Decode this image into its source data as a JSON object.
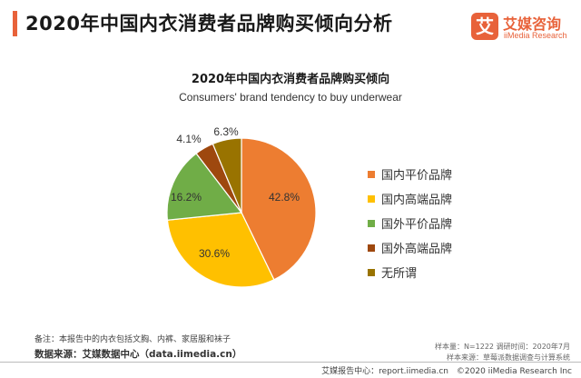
{
  "header": {
    "title": "2020年中国内衣消费者品牌购买倾向分析",
    "accent_color": "#e8623a"
  },
  "logo": {
    "mark": "艾",
    "cn": "艾媒咨询",
    "en": "iiMedia Research",
    "color": "#e8623a"
  },
  "chart_data": {
    "type": "pie",
    "title": "2020年中国内衣消费者品牌购买倾向",
    "subtitle": "Consumers' brand tendency to buy underwear",
    "unit": "%",
    "slices": [
      {
        "label": "国内平价品牌",
        "value": 42.8,
        "display": "42.8%",
        "color": "#ed7d31"
      },
      {
        "label": "国内高端品牌",
        "value": 30.6,
        "display": "30.6%",
        "color": "#ffc000"
      },
      {
        "label": "国外平价品牌",
        "value": 16.2,
        "display": "16.2%",
        "color": "#70ad47"
      },
      {
        "label": "国外高端品牌",
        "value": 4.1,
        "display": "4.1%",
        "color": "#9e480e"
      },
      {
        "label": "无所谓",
        "value": 6.3,
        "display": "6.3%",
        "color": "#997300"
      }
    ],
    "legend_position": "right"
  },
  "footnotes": {
    "note": "备注：本报告中的内衣包括文胸、内裤、家居服和袜子",
    "source": "数据来源：艾媒数据中心（data.iimedia.cn）",
    "sample": "样本量：N=1222   调研时间：2020年7月",
    "sample_source": "样本来源：草莓派数据调查与计算系统"
  },
  "footer": {
    "report": "艾媒报告中心：report.iimedia.cn",
    "copyright": "©2020  iiMedia Research  Inc"
  }
}
